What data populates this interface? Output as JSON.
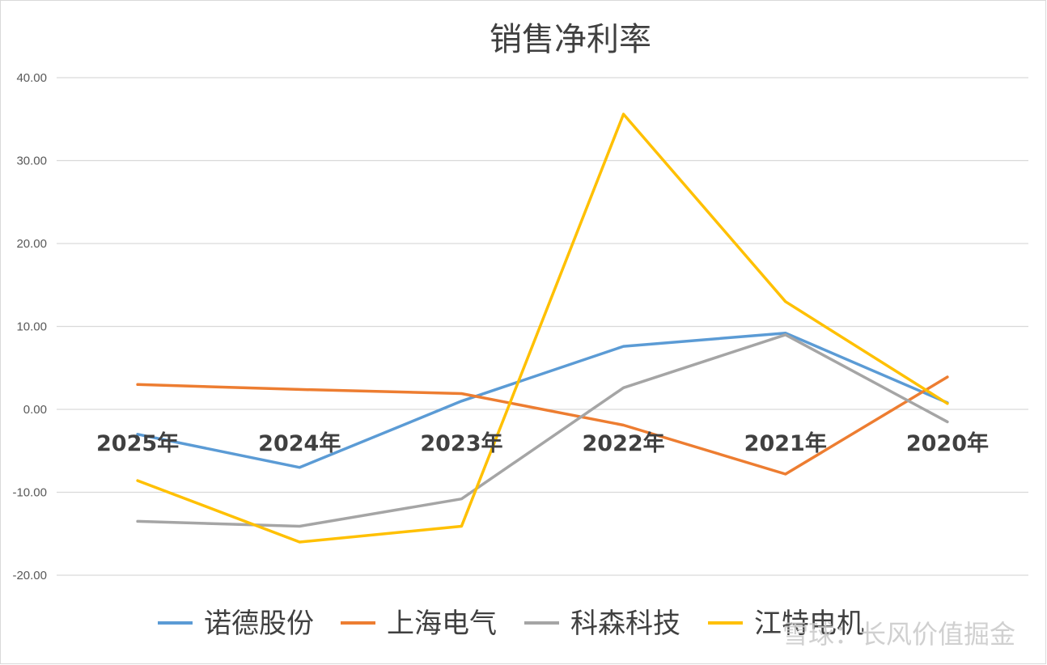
{
  "chart_data": {
    "type": "line",
    "title": "销售净利率",
    "categories": [
      "2025年",
      "2024年",
      "2023年",
      "2022年",
      "2021年",
      "2020年"
    ],
    "ylim": [
      -20,
      40
    ],
    "yticks": [
      40,
      30,
      20,
      10,
      0,
      -10,
      -20
    ],
    "ytick_labels": [
      "40.00",
      "30.00",
      "20.00",
      "10.00",
      "0.00",
      "-10.00",
      "-20.00"
    ],
    "grid": true,
    "legend_position": "bottom",
    "series": [
      {
        "name": "诺德股份",
        "color": "#5b9bd5",
        "values": [
          -3.0,
          -7.0,
          1.0,
          7.6,
          9.2,
          0.8
        ]
      },
      {
        "name": "上海电气",
        "color": "#ed7d31",
        "values": [
          3.0,
          2.4,
          1.9,
          -1.9,
          -7.8,
          3.9
        ]
      },
      {
        "name": "科森科技",
        "color": "#a5a5a5",
        "values": [
          -13.5,
          -14.1,
          -10.8,
          2.6,
          9.0,
          -1.5
        ]
      },
      {
        "name": "江特电机",
        "color": "#ffc000",
        "values": [
          -8.6,
          -16.0,
          -14.1,
          35.6,
          13.0,
          0.7
        ]
      }
    ]
  },
  "watermark": "雪球：长风价值掘金"
}
